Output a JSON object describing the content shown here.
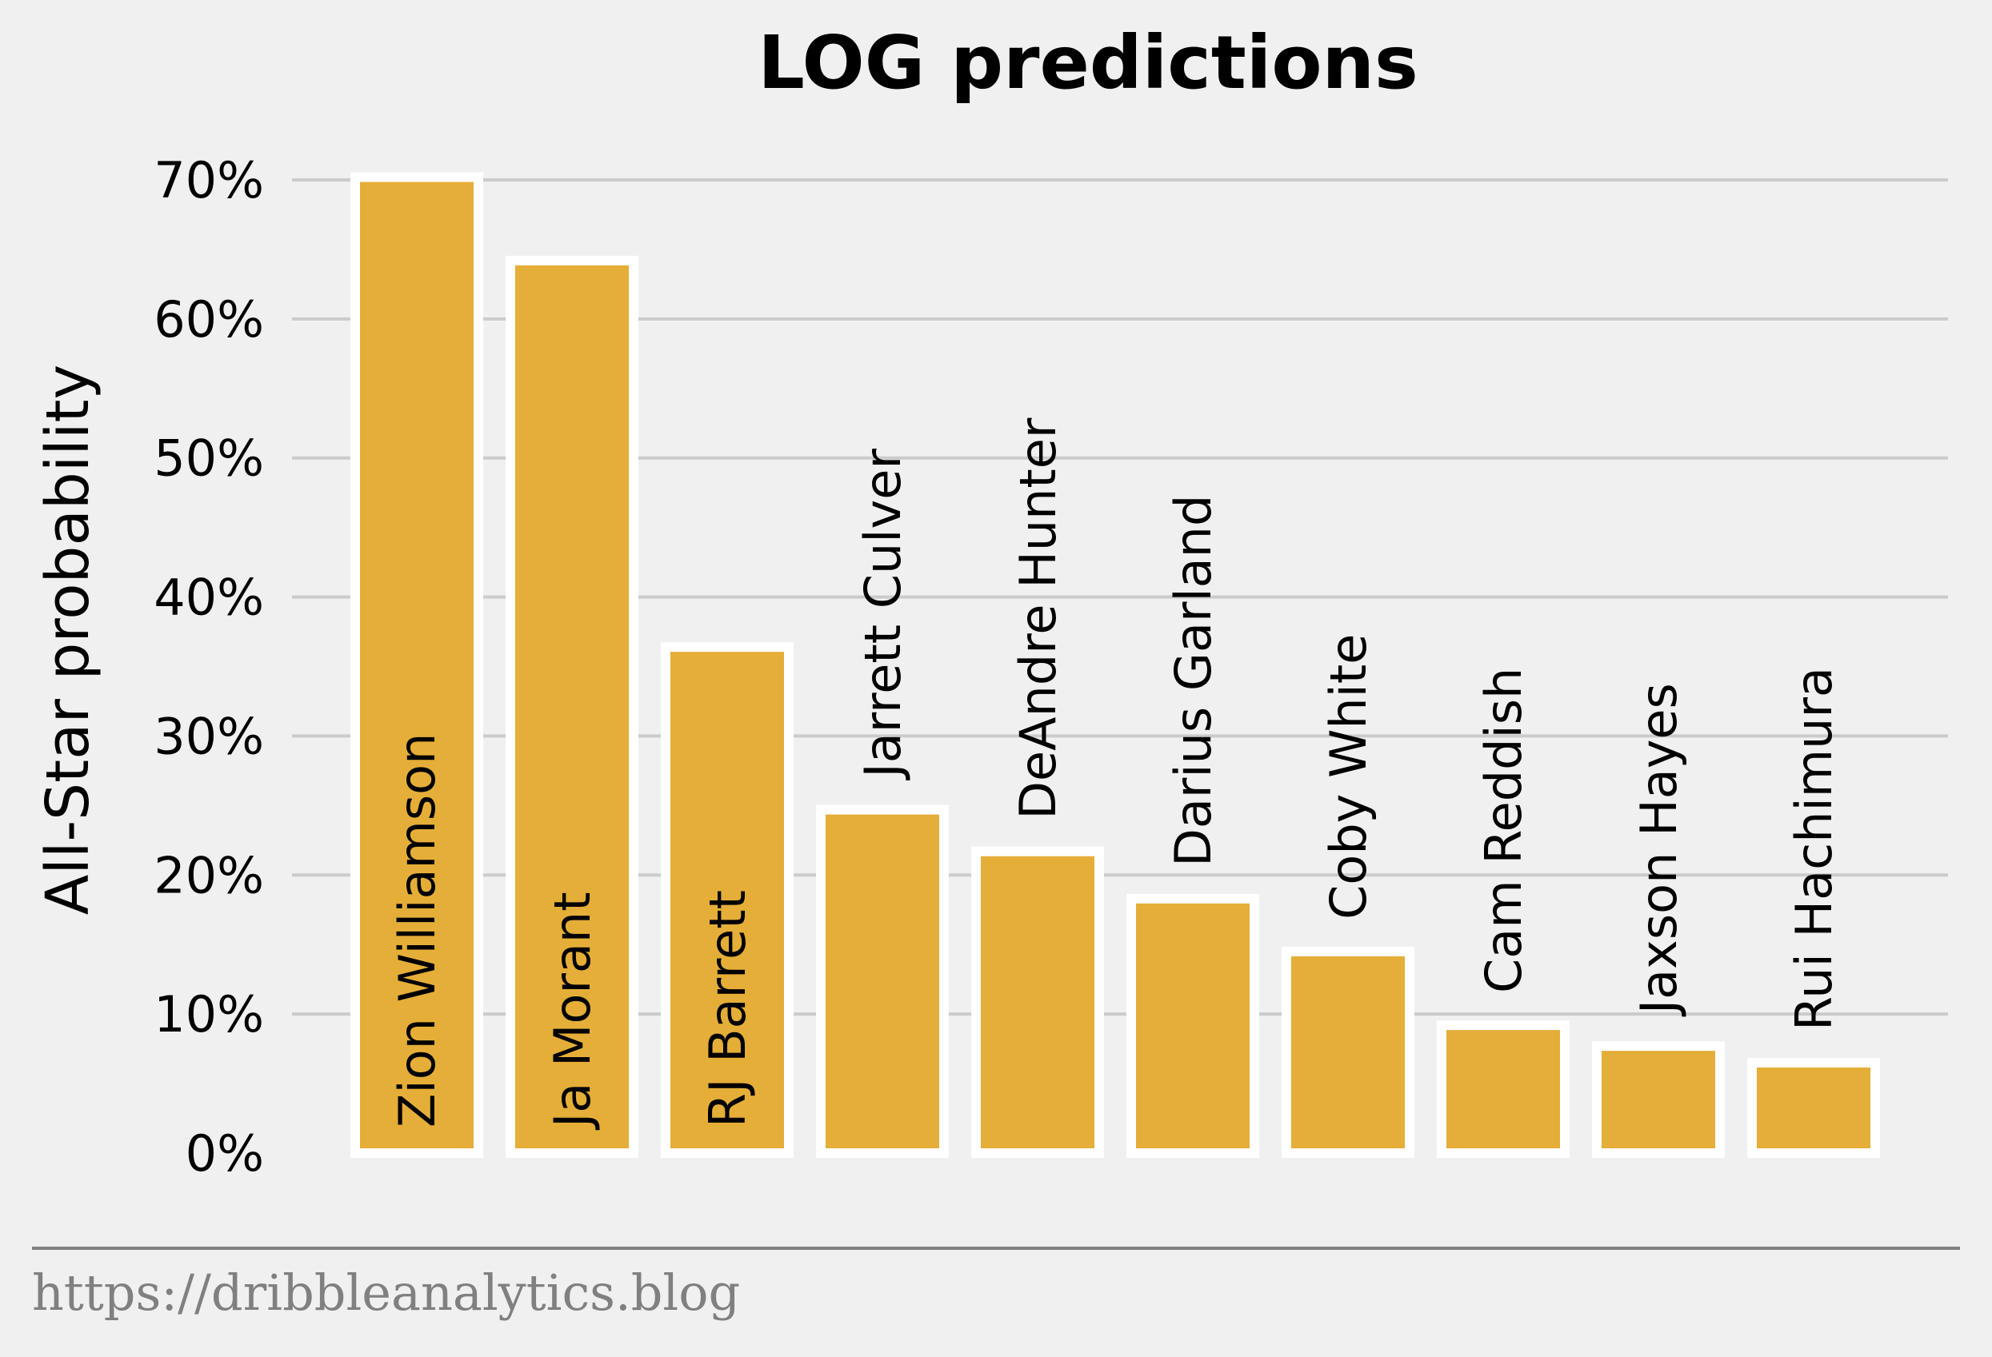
{
  "chart_data": {
    "type": "bar",
    "title": "LOG predictions",
    "ylabel": "All-Star probability",
    "xlabel": "",
    "ylim": [
      0,
      70
    ],
    "yticks": [
      0,
      10,
      20,
      30,
      40,
      50,
      60,
      70
    ],
    "ytick_labels": [
      "0%",
      "10%",
      "20%",
      "30%",
      "40%",
      "50%",
      "60%",
      "70%"
    ],
    "grid": true,
    "bar_color": "#e5ae38",
    "categories": [
      "Zion Williamson",
      "Ja Morant",
      "RJ Barrett",
      "Jarrett Culver",
      "DeAndre Hunter",
      "Darius Garland",
      "Coby White",
      "Cam Reddish",
      "Jaxson Hayes",
      "Rui Hachimura"
    ],
    "values": [
      70.2,
      64.2,
      36.4,
      24.7,
      21.7,
      18.3,
      14.5,
      9.2,
      7.7,
      6.5
    ]
  },
  "footer": {
    "source": "https://dribbleanalytics.blog"
  }
}
